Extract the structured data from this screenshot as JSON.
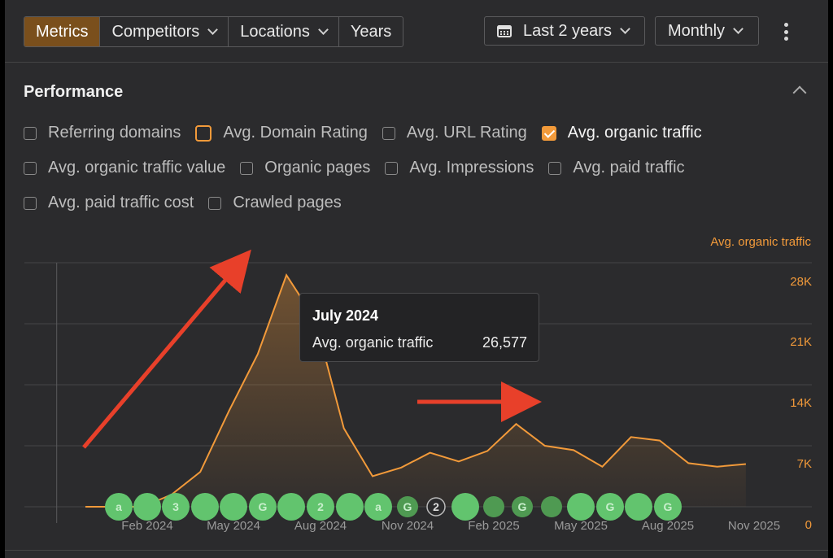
{
  "toolbar": {
    "tabs": [
      {
        "label": "Metrics",
        "active": true,
        "dropdown": false
      },
      {
        "label": "Competitors",
        "active": false,
        "dropdown": true
      },
      {
        "label": "Locations",
        "active": false,
        "dropdown": true
      },
      {
        "label": "Years",
        "active": false,
        "dropdown": false
      }
    ],
    "date_range": "Last 2 years",
    "granularity": "Monthly"
  },
  "performance": {
    "title": "Performance",
    "metrics": [
      {
        "label": "Referring domains",
        "state": "unchecked"
      },
      {
        "label": "Avg. Domain Rating",
        "state": "highlighted"
      },
      {
        "label": "Avg. URL Rating",
        "state": "unchecked"
      },
      {
        "label": "Avg. organic traffic",
        "state": "checked"
      },
      {
        "label": "Avg. organic traffic value",
        "state": "unchecked"
      },
      {
        "label": "Organic pages",
        "state": "unchecked"
      },
      {
        "label": "Avg. Impressions",
        "state": "unchecked"
      },
      {
        "label": "Avg. paid traffic",
        "state": "unchecked"
      },
      {
        "label": "Avg. paid traffic cost",
        "state": "unchecked"
      },
      {
        "label": "Crawled pages",
        "state": "unchecked"
      }
    ]
  },
  "colors": {
    "accent": "#f29a3a",
    "active_tab": "#7a4f1c",
    "marker_green": "#62c46e",
    "arrow_red": "#e8402a"
  },
  "chart_data": {
    "type": "area",
    "series": [
      {
        "name": "Avg. organic traffic",
        "x": [
          "Dec 2023",
          "Jan 2024",
          "Feb 2024",
          "Mar 2024",
          "Apr 2024",
          "May 2024",
          "Jun 2024",
          "Jul 2024",
          "Aug 2024",
          "Sep 2024",
          "Oct 2024",
          "Nov 2024",
          "Dec 2024",
          "Jan 2025",
          "Feb 2025",
          "Mar 2025",
          "Apr 2025",
          "May 2025",
          "Jun 2025",
          "Jul 2025",
          "Aug 2025",
          "Sep 2025",
          "Oct 2025",
          "Nov 2025"
        ],
        "values": [
          0,
          0,
          0,
          1400,
          4000,
          11000,
          17500,
          26577,
          21500,
          9000,
          3500,
          4500,
          6200,
          5200,
          6400,
          9500,
          7000,
          6500,
          4600,
          8000,
          7600,
          5000,
          4600,
          4900
        ]
      }
    ],
    "x_ticks": [
      "Feb 2024",
      "May 2024",
      "Aug 2024",
      "Nov 2024",
      "Feb 2025",
      "May 2025",
      "Aug 2025",
      "Nov 2025"
    ],
    "y_ticks": [
      "0",
      "7K",
      "14K",
      "21K",
      "28K"
    ],
    "ylim": [
      0,
      28000
    ],
    "legend": "Avg. organic traffic",
    "grid": true,
    "tooltip": {
      "title": "July 2024",
      "label": "Avg. organic traffic",
      "value": "26,577"
    },
    "annotations": [
      {
        "index": 0,
        "glyph": "a",
        "shade": "bright"
      },
      {
        "index": 1,
        "glyph": "",
        "shade": "bright"
      },
      {
        "index": 2,
        "glyph": "3",
        "shade": "bright"
      },
      {
        "index": 3,
        "glyph": "",
        "shade": "bright"
      },
      {
        "index": 4,
        "glyph": "",
        "shade": "bright"
      },
      {
        "index": 5,
        "glyph": "G",
        "shade": "bright"
      },
      {
        "index": 6,
        "glyph": "",
        "shade": "bright"
      },
      {
        "index": 7,
        "glyph": "2",
        "shade": "bright"
      },
      {
        "index": 8,
        "glyph": "",
        "shade": "bright"
      },
      {
        "index": 9,
        "glyph": "a",
        "shade": "bright"
      },
      {
        "index": 10,
        "glyph": "G",
        "shade": "dim"
      },
      {
        "index": 11,
        "glyph": "2",
        "shade": "outline"
      },
      {
        "index": 12,
        "glyph": "",
        "shade": "bright"
      },
      {
        "index": 13,
        "glyph": "",
        "shade": "dim"
      },
      {
        "index": 14,
        "glyph": "G",
        "shade": "dim"
      },
      {
        "index": 15,
        "glyph": "",
        "shade": "dim"
      },
      {
        "index": 16,
        "glyph": "",
        "shade": "bright"
      },
      {
        "index": 17,
        "glyph": "G",
        "shade": "bright"
      },
      {
        "index": 18,
        "glyph": "",
        "shade": "bright"
      },
      {
        "index": 19,
        "glyph": "G",
        "shade": "bright"
      }
    ]
  }
}
